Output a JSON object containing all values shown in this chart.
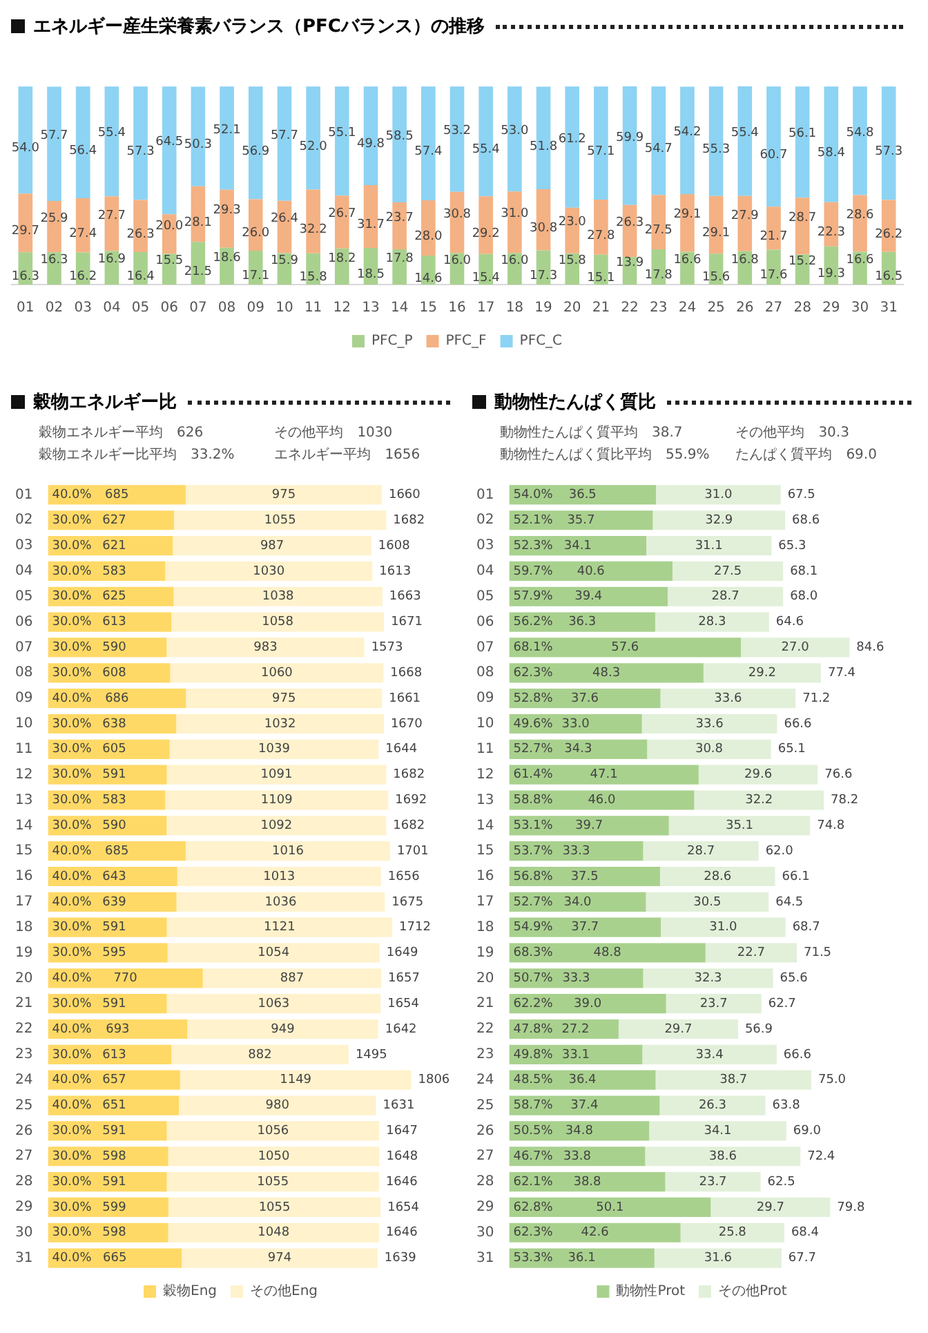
{
  "chart_data": [
    {
      "type": "bar",
      "stacked": true,
      "title": "エネルギー産生栄養素バランス（PFCバランス）の推移",
      "legend": "bottom",
      "categories": [
        "01",
        "02",
        "03",
        "04",
        "05",
        "06",
        "07",
        "08",
        "09",
        "10",
        "11",
        "12",
        "13",
        "14",
        "15",
        "16",
        "17",
        "18",
        "19",
        "20",
        "21",
        "22",
        "23",
        "24",
        "25",
        "26",
        "27",
        "28",
        "29",
        "30",
        "31"
      ],
      "series": [
        {
          "name": "PFC_P",
          "color": "#a9d18e",
          "values": [
            16.3,
            16.3,
            16.2,
            16.9,
            16.4,
            15.5,
            21.5,
            18.6,
            17.1,
            15.9,
            15.8,
            18.2,
            18.5,
            17.8,
            14.6,
            16.0,
            15.4,
            16.0,
            17.3,
            15.8,
            15.1,
            13.9,
            17.8,
            16.6,
            15.6,
            16.8,
            17.6,
            15.2,
            19.3,
            16.6,
            16.5
          ],
          "value_labels": [
            "16.3",
            "16.3",
            "16.2",
            "16.9",
            "16.4",
            "15.5",
            "21.5",
            "18.6",
            "17.1",
            "15.9",
            "15.8",
            "18.2",
            "18.5",
            "17.8",
            "14.6",
            "16.0",
            "15.4",
            "16.0",
            "17.3",
            "15.8",
            "15.1",
            "13.9",
            "17.8",
            "16.6",
            "15.6",
            "16.8",
            "17.6",
            "15.2",
            "19.3",
            "16.6",
            "16.5"
          ]
        },
        {
          "name": "PFC_F",
          "color": "#f4b183",
          "values": [
            29.7,
            25.9,
            27.4,
            27.7,
            26.3,
            20.0,
            28.1,
            29.3,
            26.0,
            26.4,
            32.2,
            26.7,
            31.7,
            23.7,
            28.0,
            30.8,
            29.2,
            31.0,
            30.8,
            23.0,
            27.8,
            26.3,
            27.5,
            29.1,
            29.1,
            27.9,
            21.7,
            28.7,
            22.3,
            28.6,
            26.2
          ],
          "value_labels": [
            "29.7",
            "25.9",
            "27.4",
            "27.7",
            "26.3",
            "20.0",
            "28.1",
            "29.3",
            "26.0",
            "26.4",
            "32.2",
            "26.7",
            "31.7",
            "23.7",
            "28.0",
            "30.8",
            "29.2",
            "31.0",
            "30.8",
            "23.0",
            "27.8",
            "26.3",
            "27.5",
            "29.1",
            "29.1",
            "27.9",
            "21.7",
            "28.7",
            "22.3",
            "28.6",
            "26.2"
          ]
        },
        {
          "name": "PFC_C",
          "color": "#8dd3f3",
          "values": [
            54.0,
            57.7,
            56.4,
            55.4,
            57.3,
            64.5,
            50.3,
            52.1,
            56.9,
            57.7,
            52.0,
            55.1,
            49.8,
            58.5,
            57.4,
            53.2,
            55.4,
            53.0,
            51.8,
            61.2,
            57.1,
            59.9,
            54.7,
            54.2,
            55.3,
            55.4,
            60.7,
            56.1,
            58.4,
            54.8,
            57.3
          ],
          "value_labels": [
            "54.0",
            "57.7",
            "56.4",
            "55.4",
            "57.3",
            "64.5",
            "50.3",
            "52.1",
            "56.9",
            "57.7",
            "52.0",
            "55.1",
            "49.8",
            "58.5",
            "57.4",
            "53.2",
            "55.4",
            "53.0",
            "51.8",
            "61.2",
            "57.1",
            "59.9",
            "54.7",
            "54.2",
            "55.3",
            "55.4",
            "60.7",
            "56.1",
            "58.4",
            "54.8",
            "57.3"
          ]
        }
      ]
    },
    {
      "type": "bar",
      "orientation": "horizontal",
      "stacked": true,
      "title": "穀物エネルギー比",
      "legend": "bottom",
      "data_labels": true,
      "categories": [
        "01",
        "02",
        "03",
        "04",
        "05",
        "06",
        "07",
        "08",
        "09",
        "10",
        "11",
        "12",
        "13",
        "14",
        "15",
        "16",
        "17",
        "18",
        "19",
        "20",
        "21",
        "22",
        "23",
        "24",
        "25",
        "26",
        "27",
        "28",
        "29",
        "30",
        "31"
      ],
      "series": [
        {
          "name": "穀物Eng",
          "color": "#ffd966",
          "values": [
            685,
            627,
            621,
            583,
            625,
            613,
            590,
            608,
            686,
            638,
            605,
            591,
            583,
            590,
            685,
            643,
            639,
            591,
            595,
            770,
            591,
            693,
            613,
            657,
            651,
            591,
            598,
            591,
            599,
            598,
            665
          ]
        },
        {
          "name": "その他Eng",
          "color": "#fff2cc",
          "values": [
            975,
            1055,
            987,
            1030,
            1038,
            1058,
            983,
            1060,
            975,
            1032,
            1039,
            1091,
            1109,
            1092,
            1016,
            1013,
            1036,
            1121,
            1054,
            887,
            1063,
            949,
            882,
            1149,
            980,
            1056,
            1050,
            1055,
            1055,
            1048,
            974
          ]
        }
      ],
      "totals": [
        "1660",
        "1682",
        "1608",
        "1613",
        "1663",
        "1671",
        "1573",
        "1668",
        "1661",
        "1670",
        "1644",
        "1682",
        "1692",
        "1682",
        "1701",
        "1656",
        "1675",
        "1712",
        "1649",
        "1657",
        "1654",
        "1642",
        "1495",
        "1806",
        "1631",
        "1647",
        "1648",
        "1646",
        "1654",
        "1646",
        "1639"
      ],
      "annotations": [
        "穀物エネルギー平均　626",
        "その他平均　1030",
        "穀物エネルギー比平均　33.2%",
        "エネルギー平均　1656",
        {
          "text": "40.0%",
          "y": "01"
        },
        {
          "text": "30.0%",
          "y": "02"
        },
        {
          "text": "30.0%",
          "y": "03"
        },
        {
          "text": "30.0%",
          "y": "04"
        },
        {
          "text": "30.0%",
          "y": "05"
        },
        {
          "text": "30.0%",
          "y": "06"
        },
        {
          "text": "30.0%",
          "y": "07"
        },
        {
          "text": "30.0%",
          "y": "08"
        },
        {
          "text": "40.0%",
          "y": "09"
        },
        {
          "text": "30.0%",
          "y": "10"
        },
        {
          "text": "30.0%",
          "y": "11"
        },
        {
          "text": "30.0%",
          "y": "12"
        },
        {
          "text": "30.0%",
          "y": "13"
        },
        {
          "text": "30.0%",
          "y": "14"
        },
        {
          "text": "40.0%",
          "y": "15"
        },
        {
          "text": "40.0%",
          "y": "16"
        },
        {
          "text": "40.0%",
          "y": "17"
        },
        {
          "text": "30.0%",
          "y": "18"
        },
        {
          "text": "30.0%",
          "y": "19"
        },
        {
          "text": "40.0%",
          "y": "20"
        },
        {
          "text": "30.0%",
          "y": "21"
        },
        {
          "text": "40.0%",
          "y": "22"
        },
        {
          "text": "30.0%",
          "y": "23"
        },
        {
          "text": "40.0%",
          "y": "24"
        },
        {
          "text": "40.0%",
          "y": "25"
        },
        {
          "text": "30.0%",
          "y": "26"
        },
        {
          "text": "30.0%",
          "y": "27"
        },
        {
          "text": "30.0%",
          "y": "28"
        },
        {
          "text": "30.0%",
          "y": "29"
        },
        {
          "text": "30.0%",
          "y": "30"
        },
        {
          "text": "40.0%",
          "y": "31"
        }
      ]
    },
    {
      "type": "bar",
      "orientation": "horizontal",
      "stacked": true,
      "title": "動物性たんぱく質比",
      "legend": "bottom",
      "categories": [
        "01",
        "02",
        "03",
        "04",
        "05",
        "06",
        "07",
        "08",
        "09",
        "10",
        "11",
        "12",
        "13",
        "14",
        "15",
        "16",
        "17",
        "18",
        "19",
        "20",
        "21",
        "22",
        "23",
        "24",
        "25",
        "26",
        "27",
        "28",
        "29",
        "30",
        "31"
      ],
      "series": [
        {
          "name": "動物性Prot",
          "color": "#a9d18e",
          "values": [
            36.5,
            35.7,
            34.1,
            40.6,
            39.4,
            36.3,
            57.6,
            48.3,
            37.6,
            33.0,
            34.3,
            47.1,
            46.0,
            39.7,
            33.3,
            37.5,
            34.0,
            37.7,
            48.8,
            33.3,
            39.0,
            27.2,
            33.1,
            36.4,
            37.4,
            34.8,
            33.8,
            38.8,
            50.1,
            42.6,
            36.1
          ],
          "value_labels": [
            "36.5",
            "35.7",
            "34.1",
            "40.6",
            "39.4",
            "36.3",
            "57.6",
            "48.3",
            "37.6",
            "33.0",
            "34.3",
            "47.1",
            "46.0",
            "39.7",
            "33.3",
            "37.5",
            "34.0",
            "37.7",
            "48.8",
            "33.3",
            "39.0",
            "27.2",
            "33.1",
            "36.4",
            "37.4",
            "34.8",
            "33.8",
            "38.8",
            "50.1",
            "42.6",
            "36.1"
          ]
        },
        {
          "name": "その他Prot",
          "color": "#e2f0d9",
          "values": [
            31.0,
            32.9,
            31.1,
            27.5,
            28.7,
            28.3,
            27.0,
            29.2,
            33.6,
            33.6,
            30.8,
            29.6,
            32.2,
            35.1,
            28.7,
            28.6,
            30.5,
            31.0,
            22.7,
            32.3,
            23.7,
            29.7,
            33.4,
            38.7,
            26.3,
            34.1,
            38.6,
            23.7,
            29.7,
            25.8,
            31.6
          ],
          "value_labels": [
            "31.0",
            "32.9",
            "31.1",
            "27.5",
            "28.7",
            "28.3",
            "27.0",
            "29.2",
            "33.6",
            "33.6",
            "30.8",
            "29.6",
            "32.2",
            "35.1",
            "28.7",
            "28.6",
            "30.5",
            "31.0",
            "22.7",
            "32.3",
            "23.7",
            "29.7",
            "33.4",
            "38.7",
            "26.3",
            "34.1",
            "38.6",
            "23.7",
            "29.7",
            "25.8",
            "31.6"
          ]
        }
      ],
      "totals": [
        "67.5",
        "68.6",
        "65.3",
        "68.1",
        "68.0",
        "64.6",
        "84.6",
        "77.4",
        "71.2",
        "66.6",
        "65.1",
        "76.6",
        "78.2",
        "74.8",
        "62.0",
        "66.1",
        "64.5",
        "68.7",
        "71.5",
        "65.6",
        "62.7",
        "56.9",
        "66.6",
        "75.0",
        "63.8",
        "69.0",
        "72.4",
        "62.5",
        "79.8",
        "68.4",
        "67.7"
      ],
      "annotations": [
        "動物性たんぱく質平均　38.7",
        "その他平均　30.3",
        "動物性たんぱく質比平均　55.9%",
        "たんぱく質平均　69.0",
        {
          "text": "54.0%",
          "y": "01"
        },
        {
          "text": "52.1%",
          "y": "02"
        },
        {
          "text": "52.3%",
          "y": "03"
        },
        {
          "text": "59.7%",
          "y": "04"
        },
        {
          "text": "57.9%",
          "y": "05"
        },
        {
          "text": "56.2%",
          "y": "06"
        },
        {
          "text": "68.1%",
          "y": "07"
        },
        {
          "text": "62.3%",
          "y": "08"
        },
        {
          "text": "52.8%",
          "y": "09"
        },
        {
          "text": "49.6%",
          "y": "10"
        },
        {
          "text": "52.7%",
          "y": "11"
        },
        {
          "text": "61.4%",
          "y": "12"
        },
        {
          "text": "58.8%",
          "y": "13"
        },
        {
          "text": "53.1%",
          "y": "14"
        },
        {
          "text": "53.7%",
          "y": "15"
        },
        {
          "text": "56.8%",
          "y": "16"
        },
        {
          "text": "52.7%",
          "y": "17"
        },
        {
          "text": "54.9%",
          "y": "18"
        },
        {
          "text": "68.3%",
          "y": "19"
        },
        {
          "text": "50.7%",
          "y": "20"
        },
        {
          "text": "62.2%",
          "y": "21"
        },
        {
          "text": "47.8%",
          "y": "22"
        },
        {
          "text": "49.8%",
          "y": "23"
        },
        {
          "text": "48.5%",
          "y": "24"
        },
        {
          "text": "58.7%",
          "y": "25"
        },
        {
          "text": "50.5%",
          "y": "26"
        },
        {
          "text": "46.7%",
          "y": "27"
        },
        {
          "text": "62.1%",
          "y": "28"
        },
        {
          "text": "62.8%",
          "y": "29"
        },
        {
          "text": "62.3%",
          "y": "30"
        },
        {
          "text": "53.3%",
          "y": "31"
        }
      ]
    }
  ]
}
